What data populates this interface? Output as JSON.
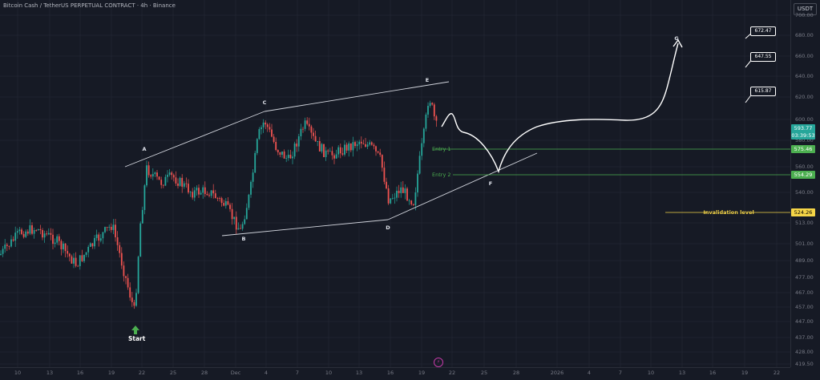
{
  "header": {
    "title": "Bitcoin Cash / TetherUS PERPETUAL CONTRACT · 4h · Binance",
    "currency": "USDT"
  },
  "price_axis": {
    "ticks": [
      "700.00",
      "680.00",
      "660.00",
      "640.00",
      "620.00",
      "600.00",
      "580.00",
      "560.00",
      "540.00",
      "524.26",
      "513.00",
      "501.00",
      "489.00",
      "477.00",
      "467.00",
      "457.00",
      "447.00",
      "437.00",
      "428.00",
      "419.50"
    ]
  },
  "time_axis": {
    "ticks": [
      "10",
      "13",
      "16",
      "19",
      "22",
      "25",
      "28",
      "Dec",
      "4",
      "7",
      "10",
      "13",
      "16",
      "19",
      "22",
      "25",
      "28",
      "2026",
      "4",
      "7",
      "10",
      "13",
      "16",
      "19",
      "22"
    ]
  },
  "price_tags": {
    "current": "593.77",
    "countdown": "03:39:53",
    "entry1": "575.46",
    "entry2": "554.29",
    "invalidation": "524.26"
  },
  "annotations": {
    "waves": [
      "A",
      "B",
      "C",
      "D",
      "E",
      "F",
      "G"
    ],
    "entry1": "Entry 1",
    "entry2": "Entry 2",
    "invalidation": "Invalidation level",
    "start": "Start",
    "targets": [
      "672.47",
      "647.55",
      "615.87"
    ]
  },
  "colors": {
    "up": "#26a69a",
    "down": "#ef5350",
    "entry": "#4caf50",
    "invalidation": "#f5d547",
    "background": "#161a25"
  },
  "chart_data": {
    "type": "candlestick",
    "symbol": "BCHUSDT.P",
    "interval": "4h",
    "ylim": [
      419.5,
      710
    ],
    "levels": [
      {
        "name": "Entry 1",
        "value": 575.46
      },
      {
        "name": "Entry 2",
        "value": 554.29
      },
      {
        "name": "Invalidation level",
        "value": 524.26
      }
    ],
    "current_price": 593.77,
    "targets": [
      672.47,
      647.55,
      615.87
    ],
    "waves": [
      {
        "label": "A",
        "price": 566
      },
      {
        "label": "B",
        "price": 512
      },
      {
        "label": "C",
        "price": 607
      },
      {
        "label": "D",
        "price": 522
      },
      {
        "label": "E",
        "price": 628
      },
      {
        "label": "F",
        "price": 556
      },
      {
        "label": "G",
        "price": 680
      }
    ]
  }
}
